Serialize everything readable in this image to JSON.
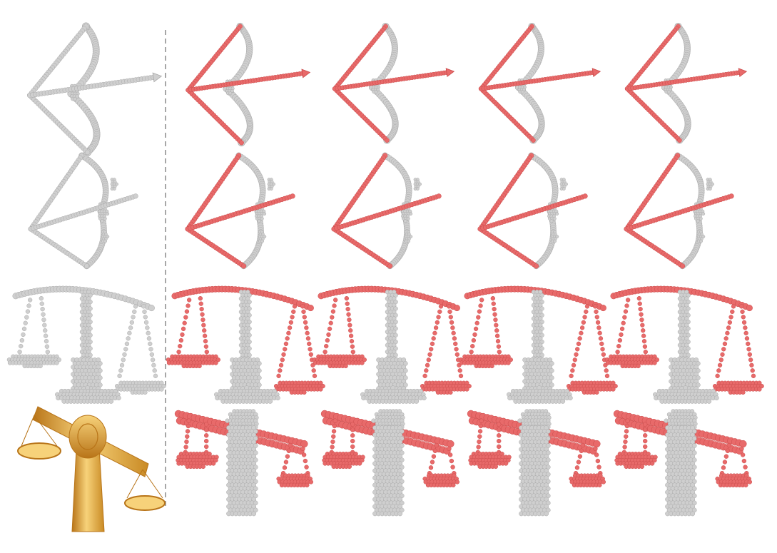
{
  "colors": {
    "background": "#ffffff",
    "grey_points": "#cfcfcf",
    "grey_outline": "#a8a8a8",
    "red_points": "#e86a6a",
    "red_outline": "#c94a4a",
    "divider": "#8a8a8a",
    "gold": "#e8a63c",
    "gold_dark": "#b87418",
    "gold_light": "#f7d27a"
  },
  "figure": {
    "columns": [
      "input",
      "result-1",
      "result-2",
      "result-3",
      "result-4"
    ],
    "rows": [
      {
        "object": "bow-and-arrow",
        "view": "front",
        "input_kind": "point-cloud",
        "highlight": "string-and-arrow"
      },
      {
        "object": "bow-and-arrow",
        "view": "oblique",
        "input_kind": "point-cloud",
        "highlight": "string-and-arrow"
      },
      {
        "object": "balance-scale",
        "view": "front",
        "input_kind": "point-cloud",
        "highlight": "beam-and-pans"
      },
      {
        "object": "balance-scale",
        "view": "oblique",
        "input_kind": "textured-mesh",
        "highlight": "beam-and-pans"
      }
    ]
  }
}
